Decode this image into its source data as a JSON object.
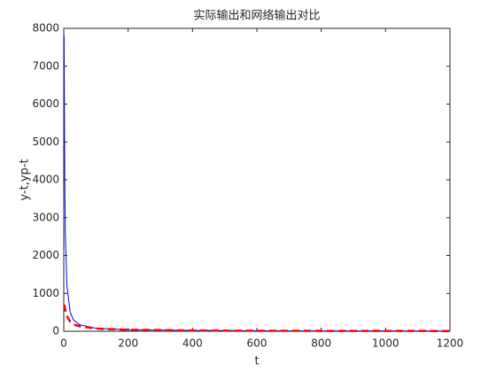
{
  "chart_data": {
    "type": "line",
    "title": "实际输出和网络输出对比",
    "xlabel": "t",
    "ylabel": "y-t,yp-t",
    "x": [
      1,
      3,
      5,
      10,
      20,
      30,
      50,
      100,
      200,
      400,
      600,
      800,
      1000,
      1200
    ],
    "series": [
      {
        "color": "#0000ff",
        "dash": false,
        "values": [
          7800,
          4000,
          2500,
          1200,
          500,
          300,
          170,
          80,
          40,
          20,
          13,
          10,
          8,
          7
        ]
      },
      {
        "color": "#ff0000",
        "dash": true,
        "values": [
          700,
          650,
          550,
          400,
          250,
          180,
          130,
          70,
          40,
          20,
          13,
          10,
          8,
          7
        ]
      }
    ],
    "xlim": [
      0,
      1200
    ],
    "xticks": [
      0,
      200,
      400,
      600,
      800,
      1000,
      1200
    ],
    "ylim": [
      0,
      8000
    ],
    "yticks": [
      0,
      1000,
      2000,
      3000,
      4000,
      5000,
      6000,
      7000,
      8000
    ],
    "grid": false
  }
}
